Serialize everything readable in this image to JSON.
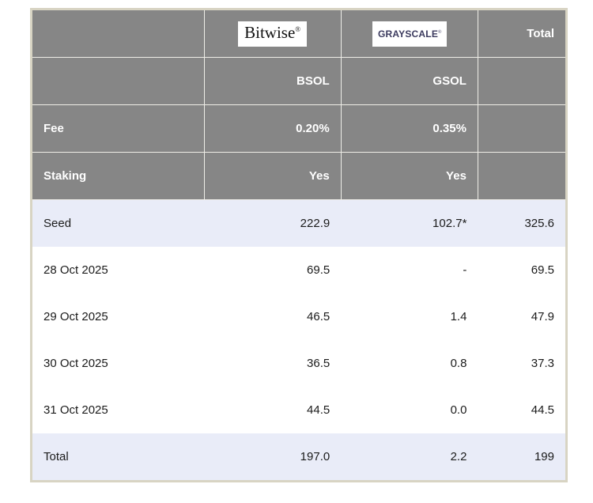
{
  "table": {
    "columns": {
      "total_label": "Total"
    },
    "logos": {
      "bitwise": {
        "text": "Bitwise",
        "mark": "®"
      },
      "grayscale": {
        "text": "GRAYSCALE",
        "mark": "®"
      }
    },
    "gray_rows": [
      {
        "label": "",
        "bitwise": "BSOL",
        "grayscale": "GSOL",
        "total": ""
      },
      {
        "label": "Fee",
        "bitwise": "0.20%",
        "grayscale": "0.35%",
        "total": ""
      },
      {
        "label": "Staking",
        "bitwise": "Yes",
        "grayscale": "Yes",
        "total": ""
      }
    ],
    "body_rows": [
      {
        "label": "Seed",
        "bitwise": "222.9",
        "grayscale": "102.7*",
        "total": "325.6",
        "highlight": true
      },
      {
        "label": "28 Oct 2025",
        "bitwise": "69.5",
        "grayscale": "-",
        "total": "69.5",
        "highlight": false
      },
      {
        "label": "29 Oct 2025",
        "bitwise": "46.5",
        "grayscale": "1.4",
        "total": "47.9",
        "highlight": false
      },
      {
        "label": "30 Oct 2025",
        "bitwise": "36.5",
        "grayscale": "0.8",
        "total": "37.3",
        "highlight": false
      },
      {
        "label": "31 Oct 2025",
        "bitwise": "44.5",
        "grayscale": "0.0",
        "total": "44.5",
        "highlight": false
      },
      {
        "label": "Total",
        "bitwise": "197.0",
        "grayscale": "2.2",
        "total": "199",
        "highlight": true
      }
    ],
    "colors": {
      "header_bg": "#868686",
      "header_text": "#ffffff",
      "highlight_bg": "#e9ecf8",
      "table_border": "#d8d4c3",
      "bitwise_logo_text": "#111111",
      "grayscale_logo_text": "#3b3a5e"
    }
  },
  "chart_data": {
    "type": "table",
    "title": "",
    "columns": [
      "",
      "Bitwise BSOL",
      "Grayscale GSOL",
      "Total"
    ],
    "rows": [
      [
        "Fee",
        "0.20%",
        "0.35%",
        ""
      ],
      [
        "Staking",
        "Yes",
        "Yes",
        ""
      ],
      [
        "Seed",
        "222.9",
        "102.7*",
        "325.6"
      ],
      [
        "28 Oct 2025",
        "69.5",
        "-",
        "69.5"
      ],
      [
        "29 Oct 2025",
        "46.5",
        "1.4",
        "47.9"
      ],
      [
        "30 Oct 2025",
        "36.5",
        "0.8",
        "37.3"
      ],
      [
        "31 Oct 2025",
        "44.5",
        "0.0",
        "44.5"
      ],
      [
        "Total",
        "197.0",
        "2.2",
        "199"
      ]
    ]
  }
}
